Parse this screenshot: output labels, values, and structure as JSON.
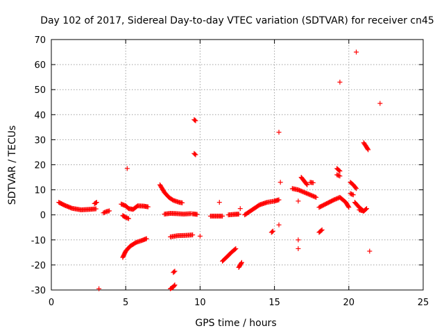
{
  "chart_data": {
    "type": "scatter",
    "title": "Day 102 of 2017, Sidereal Day-to-day VTEC variation (SDTVAR) for receiver cn45",
    "xlabel": "GPS time / hours",
    "ylabel": "SDTVAR / TECUs",
    "xlim": [
      0,
      25
    ],
    "ylim": [
      -30,
      70
    ],
    "xticks": [
      0,
      5,
      10,
      15,
      20,
      25
    ],
    "yticks": [
      -30,
      -20,
      -10,
      0,
      10,
      20,
      30,
      40,
      50,
      60,
      70
    ],
    "grid": true,
    "marker": "+",
    "color": "#ff0000",
    "segments": [
      {
        "x": [
          0.5,
          0.9,
          1.4,
          2.0,
          2.6,
          3.0
        ],
        "y": [
          5.0,
          3.8,
          2.6,
          2.0,
          2.2,
          2.4
        ]
      },
      {
        "x": [
          2.9,
          3.05
        ],
        "y": [
          4.5,
          5.0
        ]
      },
      {
        "x": [
          3.5,
          3.7,
          3.9
        ],
        "y": [
          0.8,
          1.3,
          1.6
        ]
      },
      {
        "x": [
          4.7,
          5.0,
          5.2,
          5.5,
          5.8,
          6.2,
          6.5
        ],
        "y": [
          4.3,
          3.6,
          2.5,
          2.2,
          3.6,
          3.5,
          3.2
        ]
      },
      {
        "x": [
          4.8,
          5.0,
          5.2
        ],
        "y": [
          -0.3,
          -1.0,
          -1.5
        ]
      },
      {
        "x": [
          4.8,
          5.0,
          5.3,
          5.7,
          6.1,
          6.4
        ],
        "y": [
          -17.0,
          -14.5,
          -12.5,
          -11.0,
          -10.2,
          -9.5
        ]
      },
      {
        "x": [
          7.3,
          7.6,
          7.9,
          8.2,
          8.6,
          8.8
        ],
        "y": [
          12.0,
          9.0,
          7.0,
          5.8,
          5.0,
          4.8
        ]
      },
      {
        "x": [
          7.6,
          8.0,
          8.4,
          8.9,
          9.4
        ],
        "y": [
          0.3,
          0.6,
          0.5,
          0.3,
          0.5
        ]
      },
      {
        "x": [
          9.5,
          9.8
        ],
        "y": [
          0.4,
          0.2
        ]
      },
      {
        "x": [
          8.0,
          8.5,
          9.0,
          9.5
        ],
        "y": [
          -8.8,
          -8.3,
          -8.2,
          -8.0
        ]
      },
      {
        "x": [
          8.2,
          8.3
        ],
        "y": [
          -23.0,
          -22.5
        ]
      },
      {
        "x": [
          8.0,
          8.2,
          8.3
        ],
        "y": [
          -29.5,
          -28.8,
          -28.0
        ]
      },
      {
        "x": [
          9.6,
          9.7
        ],
        "y": [
          38.0,
          37.6
        ]
      },
      {
        "x": [
          9.6,
          9.7
        ],
        "y": [
          24.5,
          24.0
        ]
      },
      {
        "x": [
          10.7,
          11.1,
          11.5
        ],
        "y": [
          -0.5,
          -0.5,
          -0.5
        ]
      },
      {
        "x": [
          11.9,
          12.3,
          12.6
        ],
        "y": [
          0.0,
          0.2,
          0.3
        ]
      },
      {
        "x": [
          11.5,
          11.8,
          12.1,
          12.4
        ],
        "y": [
          -18.5,
          -16.8,
          -15.0,
          -13.5
        ]
      },
      {
        "x": [
          12.6,
          12.8
        ],
        "y": [
          -21.0,
          -19.0
        ]
      },
      {
        "x": [
          13.0,
          13.5,
          14.0,
          14.5,
          15.0,
          15.3
        ],
        "y": [
          0.0,
          2.0,
          4.0,
          5.0,
          5.5,
          6.0
        ]
      },
      {
        "x": [
          14.8,
          14.9
        ],
        "y": [
          -7.0,
          -6.5
        ]
      },
      {
        "x": [
          16.2,
          16.6,
          17.0,
          17.4,
          17.8
        ],
        "y": [
          10.5,
          10.0,
          9.0,
          8.0,
          7.0
        ]
      },
      {
        "x": [
          16.8,
          17.0,
          17.2
        ],
        "y": [
          15.0,
          13.5,
          12.0
        ]
      },
      {
        "x": [
          17.4,
          17.6
        ],
        "y": [
          13.0,
          12.8
        ]
      },
      {
        "x": [
          18.0,
          18.2
        ],
        "y": [
          -7.0,
          -6.0
        ]
      },
      {
        "x": [
          18.0,
          18.5,
          19.0,
          19.4,
          19.8,
          20.0
        ],
        "y": [
          3.0,
          4.5,
          6.0,
          7.0,
          5.0,
          3.0
        ]
      },
      {
        "x": [
          19.2,
          19.4
        ],
        "y": [
          18.5,
          17.5
        ]
      },
      {
        "x": [
          19.2,
          19.4
        ],
        "y": [
          16.0,
          15.5
        ]
      },
      {
        "x": [
          20.1,
          20.3,
          20.5
        ],
        "y": [
          13.0,
          12.0,
          10.5
        ]
      },
      {
        "x": [
          20.1,
          20.3
        ],
        "y": [
          8.5,
          8.0
        ]
      },
      {
        "x": [
          20.4,
          20.7,
          21.0
        ],
        "y": [
          5.0,
          3.0,
          1.5
        ]
      },
      {
        "x": [
          20.7,
          21.0,
          21.2
        ],
        "y": [
          2.0,
          1.5,
          2.5
        ]
      },
      {
        "x": [
          21.0,
          21.2,
          21.3
        ],
        "y": [
          28.8,
          27.0,
          26.0
        ]
      }
    ],
    "points": [
      {
        "x": 3.2,
        "y": -29.5
      },
      {
        "x": 5.1,
        "y": 18.5
      },
      {
        "x": 10.0,
        "y": -8.5
      },
      {
        "x": 11.3,
        "y": 5.0
      },
      {
        "x": 12.7,
        "y": 2.5
      },
      {
        "x": 15.3,
        "y": 33.0
      },
      {
        "x": 15.4,
        "y": 13.0
      },
      {
        "x": 15.3,
        "y": -4.0
      },
      {
        "x": 16.6,
        "y": 5.5
      },
      {
        "x": 16.6,
        "y": -10.0
      },
      {
        "x": 16.6,
        "y": -13.5
      },
      {
        "x": 19.4,
        "y": 53.0
      },
      {
        "x": 20.5,
        "y": 65.0
      },
      {
        "x": 21.4,
        "y": -14.5
      },
      {
        "x": 22.1,
        "y": 44.5
      }
    ]
  }
}
